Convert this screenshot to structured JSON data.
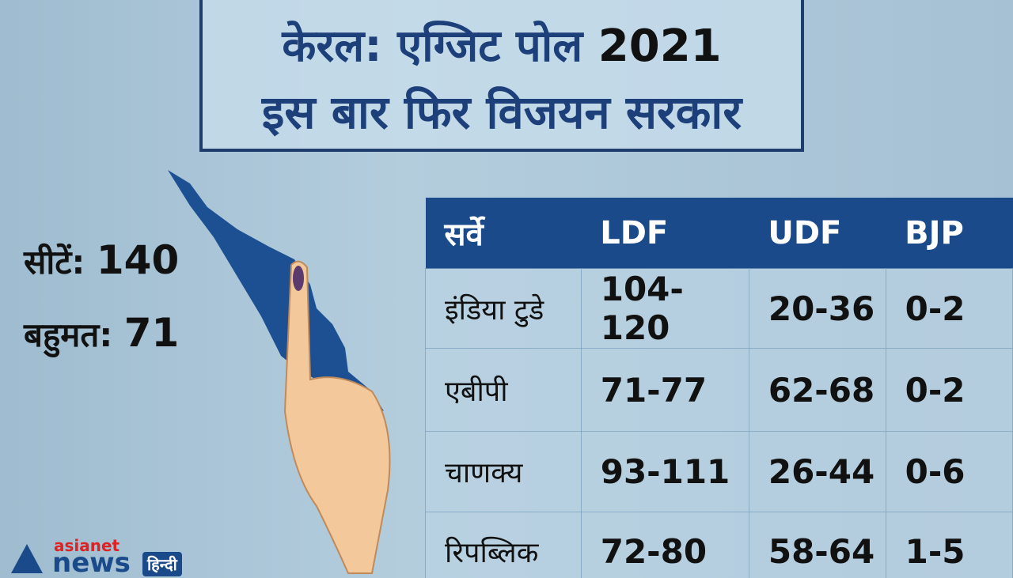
{
  "header": {
    "title_prefix": "केरल: एग्जिट पोल",
    "title_year": "2021",
    "subtitle": "इस बार फिर विजयन सरकार"
  },
  "stats": [
    {
      "label": "सीटें:",
      "value": "140"
    },
    {
      "label": "बहुमत:",
      "value": "71"
    }
  ],
  "table": {
    "columns": [
      "सर्वे",
      "LDF",
      "UDF",
      "BJP"
    ],
    "rows": [
      [
        "इंडिया टुडे",
        "104-120",
        "20-36",
        "0-2"
      ],
      [
        "एबीपी",
        "71-77",
        "62-68",
        "0-2"
      ],
      [
        "चाणक्य",
        "93-111",
        "26-44",
        "0-6"
      ],
      [
        "रिपब्लिक",
        "72-80",
        "58-64",
        "1-5"
      ]
    ]
  },
  "logo": {
    "brand": "asianet",
    "name": "news",
    "lang": "हिन्दी"
  }
}
